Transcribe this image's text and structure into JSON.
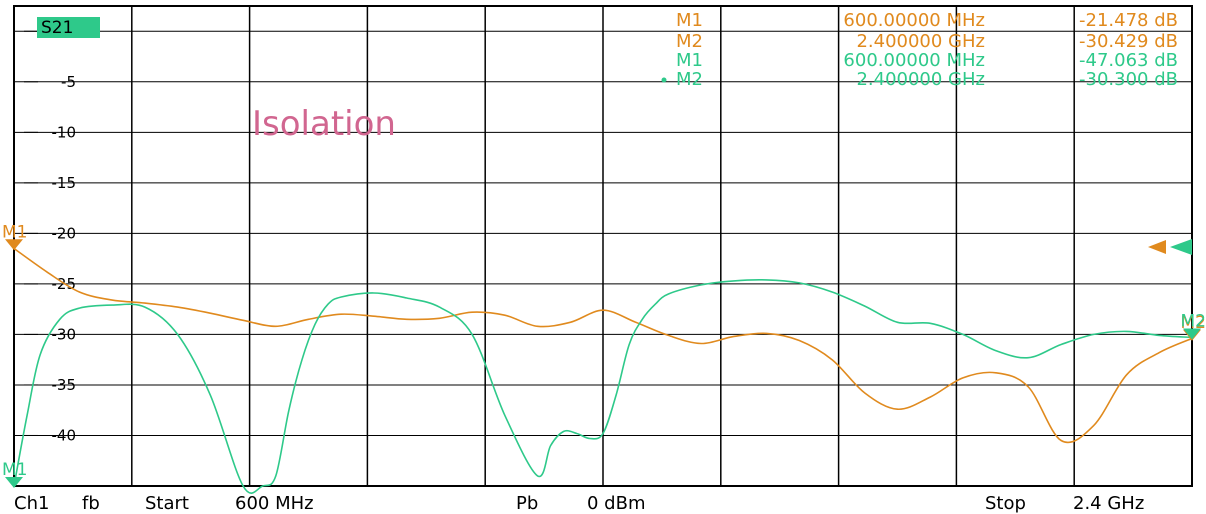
{
  "chart_data": {
    "type": "line",
    "trace_name": "S21",
    "annotation": "Isolation",
    "yticks": [
      "0",
      "-5",
      "-10",
      "-15",
      "-20",
      "-25",
      "-30",
      "-35",
      "-40"
    ],
    "ylim": [
      -45,
      2.5
    ],
    "xlim": [
      600,
      2400
    ],
    "x_unit": "MHz",
    "y_unit": "dB",
    "grid": true,
    "footer": {
      "channel": "Ch1",
      "mode": "fb",
      "start_label": "Start",
      "start_value": "600 MHz",
      "power_label": "Pb",
      "power_value": "0 dBm",
      "stop_label": "Stop",
      "stop_value": "2.4 GHz"
    },
    "series": [
      {
        "color": "#e08a1e",
        "markers": [
          {
            "label": "M1",
            "freq": "600.00000 MHz",
            "value": "-21.478 dB",
            "x": 600,
            "y": -21.478
          },
          {
            "label": "M2",
            "freq": "2.400000 GHz",
            "value": "-30.429 dB",
            "x": 2400,
            "y": -30.429
          }
        ],
        "x": [
          600,
          650,
          700,
          750,
          800,
          850,
          900,
          950,
          1000,
          1050,
          1100,
          1150,
          1200,
          1250,
          1300,
          1350,
          1400,
          1450,
          1500,
          1550,
          1600,
          1650,
          1700,
          1750,
          1800,
          1850,
          1900,
          1950,
          2000,
          2050,
          2100,
          2150,
          2200,
          2250,
          2300,
          2350,
          2400
        ],
        "y": [
          -21.5,
          -23.8,
          -25.8,
          -26.6,
          -26.9,
          -27.3,
          -27.9,
          -28.6,
          -29.2,
          -28.5,
          -28.0,
          -28.2,
          -28.5,
          -28.4,
          -27.8,
          -28.1,
          -29.2,
          -28.8,
          -27.6,
          -28.8,
          -30.1,
          -30.9,
          -30.2,
          -29.9,
          -30.6,
          -32.5,
          -35.8,
          -37.4,
          -36.2,
          -34.3,
          -33.8,
          -35.2,
          -40.5,
          -39.0,
          -34.0,
          -31.8,
          -30.4
        ]
      },
      {
        "color": "#2ec98a",
        "markers": [
          {
            "label": "M1",
            "freq": "600.00000 MHz",
            "value": "-47.063 dB",
            "x": 600,
            "y": -47.063
          },
          {
            "label": "M2",
            "freq": "2.400000 GHz",
            "value": "-30.300 dB",
            "x": 2400,
            "y": -30.3
          }
        ],
        "x": [
          600,
          620,
          640,
          670,
          700,
          750,
          800,
          850,
          900,
          950,
          980,
          1000,
          1020,
          1040,
          1060,
          1080,
          1100,
          1150,
          1200,
          1250,
          1300,
          1350,
          1400,
          1420,
          1440,
          1460,
          1480,
          1500,
          1520,
          1540,
          1560,
          1580,
          1600,
          1650,
          1700,
          1750,
          1800,
          1850,
          1900,
          1950,
          2000,
          2050,
          2100,
          2150,
          2200,
          2250,
          2300,
          2350,
          2400
        ],
        "y": [
          -47.1,
          -38.0,
          -32.0,
          -28.5,
          -27.4,
          -27.1,
          -27.3,
          -30.0,
          -36.0,
          -45.0,
          -48.0,
          -44.0,
          -37.5,
          -32.5,
          -29.0,
          -27.0,
          -26.3,
          -25.9,
          -26.4,
          -27.3,
          -30.0,
          -38.0,
          -44.0,
          -41.0,
          -39.6,
          -39.8,
          -40.3,
          -39.8,
          -36.0,
          -31.0,
          -28.5,
          -27.0,
          -26.0,
          -25.1,
          -24.7,
          -24.6,
          -24.9,
          -25.8,
          -27.2,
          -28.8,
          -28.9,
          -30.0,
          -31.6,
          -32.3,
          -31.0,
          -30.0,
          -29.7,
          -30.1,
          -30.3
        ]
      }
    ]
  }
}
